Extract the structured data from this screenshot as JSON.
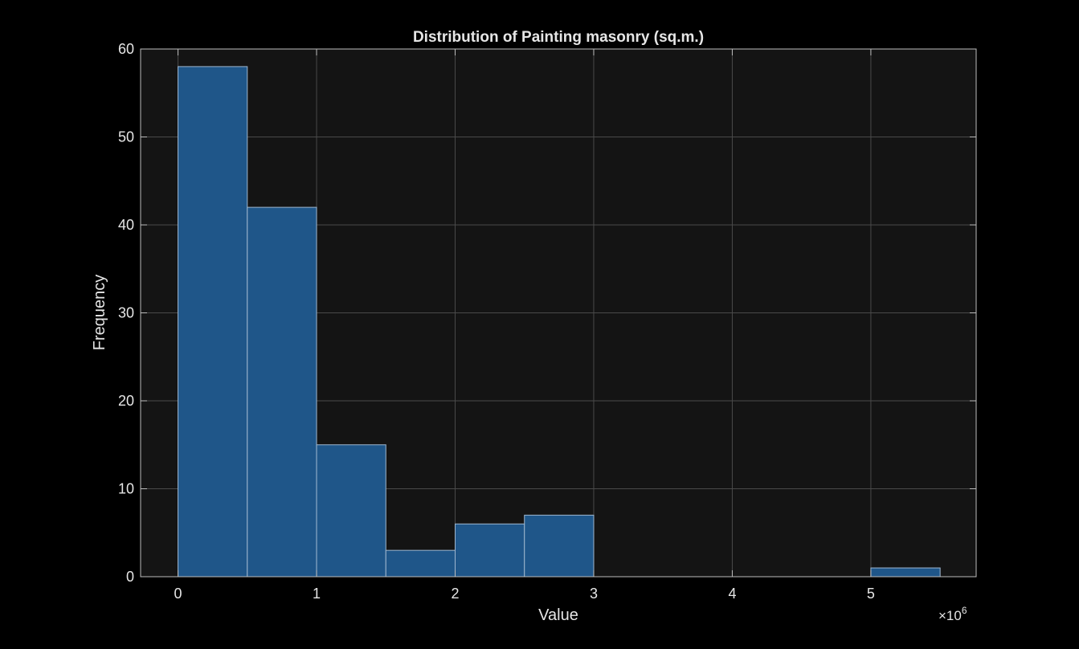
{
  "chart_data": {
    "type": "bar",
    "title": "Distribution of Painting masonry (sq.m.)",
    "xlabel": "Value",
    "ylabel": "Frequency",
    "x_multiplier_base": "×10",
    "x_multiplier_exp": "6",
    "xlim": [
      -0.27,
      5.76
    ],
    "ylim": [
      0,
      60
    ],
    "xticks": [
      0,
      1,
      2,
      3,
      4,
      5
    ],
    "yticks": [
      0,
      10,
      20,
      30,
      40,
      50,
      60
    ],
    "grid": true,
    "bin_edges": [
      0,
      0.5,
      1.0,
      1.5,
      2.0,
      2.5,
      3.0,
      3.5,
      4.0,
      4.5,
      5.0,
      5.5
    ],
    "values": [
      58,
      42,
      15,
      3,
      6,
      7,
      0,
      0,
      0,
      0,
      1
    ],
    "colors": {
      "background": "#000000",
      "plot_area": "#141414",
      "bar_fill": "#1f5689",
      "bar_edge": "#9fb7cf",
      "grid": "#4a4a4a",
      "axis": "#bdbdbd",
      "text": "#e6e6e6"
    }
  }
}
